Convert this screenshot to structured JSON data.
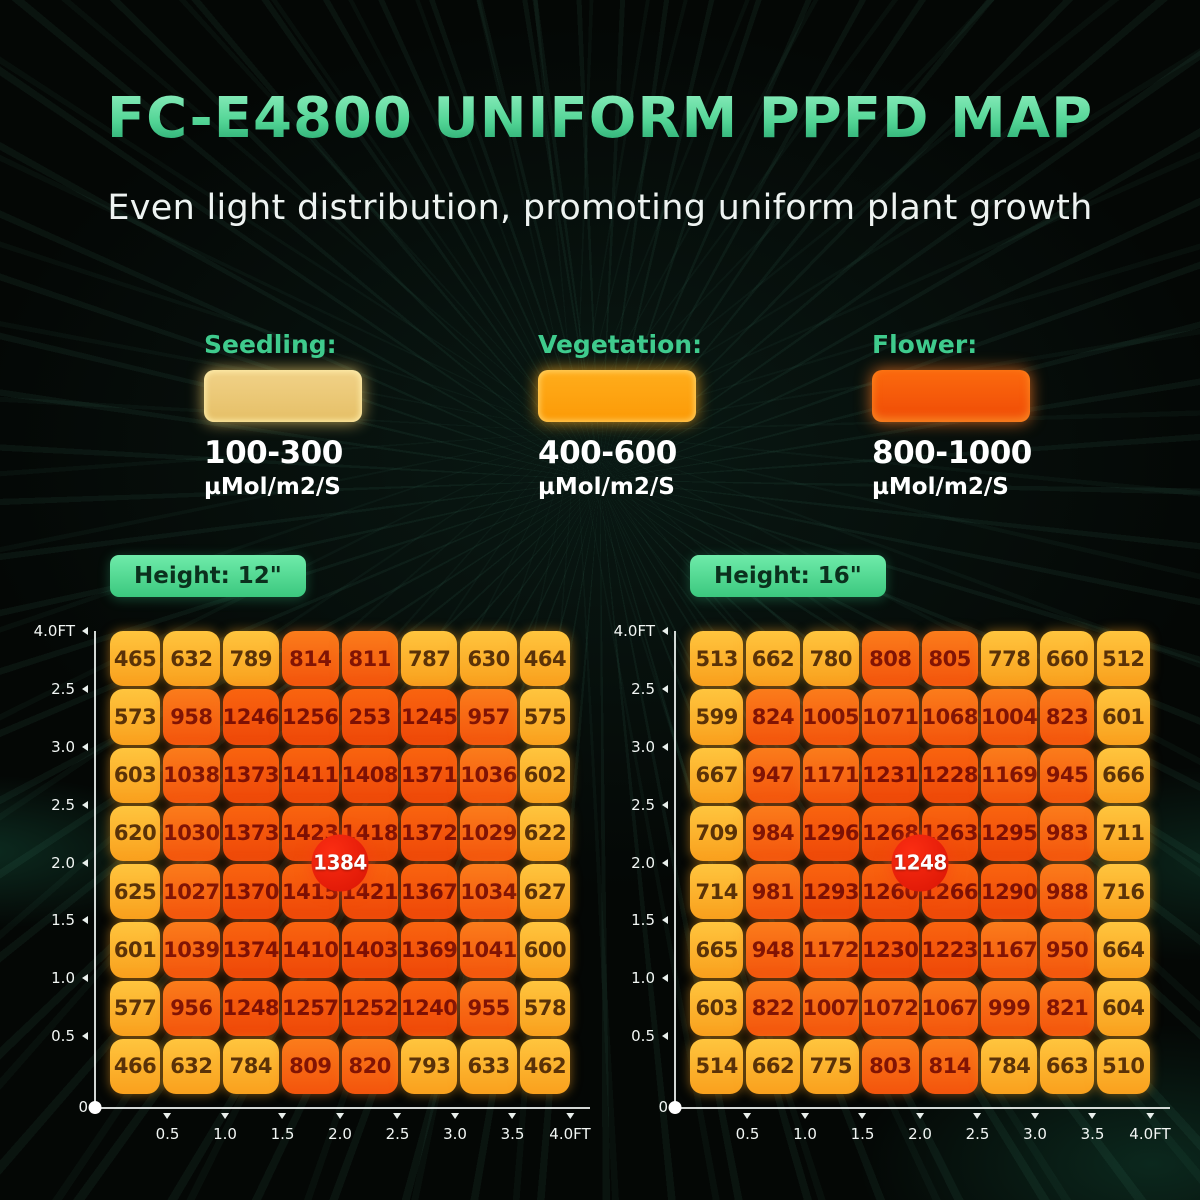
{
  "title": "FC-E4800 UNIFORM PPFD MAP",
  "subtitle": "Even light distribution, promoting uniform plant growth",
  "legend": [
    {
      "label": "Seedling:",
      "range": "100-300",
      "unit": "µMol/m2/S",
      "swatch_color": "#ecc878"
    },
    {
      "label": "Vegetation:",
      "range": "400-600",
      "unit": "µMol/m2/S",
      "swatch_color": "#fda310"
    },
    {
      "label": "Flower:",
      "range": "800-1000",
      "unit": "µMol/m2/S",
      "swatch_color": "#f4550a"
    }
  ],
  "colors": {
    "title_green": "#52d495",
    "legend_label_green": "#3fcb8d",
    "badge_green": "#4fd98d",
    "cell_yellow": "#ffb62b",
    "cell_orange": "#f86912",
    "cell_deep_orange": "#f4530d",
    "center_circle_red": "#e31b0a",
    "axis_white": "#f2f6f4",
    "background": "#040705",
    "tiers": {
      "mid_min": 800,
      "high_min": 1200
    }
  },
  "chart_data": [
    {
      "type": "heatmap",
      "title": "Height: 12\"",
      "center_value": "1384",
      "x_ticks": [
        "0.5",
        "1.0",
        "1.5",
        "2.0",
        "2.5",
        "3.0",
        "3.5",
        "4.0FT"
      ],
      "y_ticks": [
        "4.0FT",
        "2.5",
        "3.0",
        "2.5",
        "2.0",
        "1.5",
        "1.0",
        "0.5",
        "0"
      ],
      "values": [
        [
          465,
          632,
          789,
          814,
          811,
          787,
          630,
          464
        ],
        [
          573,
          958,
          1246,
          1256,
          253,
          1245,
          957,
          575
        ],
        [
          603,
          1038,
          1373,
          1411,
          1408,
          1371,
          1036,
          602
        ],
        [
          620,
          1030,
          1373,
          1423,
          1418,
          1372,
          1029,
          622
        ],
        [
          625,
          1027,
          1370,
          1415,
          1421,
          1367,
          1034,
          627
        ],
        [
          601,
          1039,
          1374,
          1410,
          1403,
          1369,
          1041,
          600
        ],
        [
          577,
          956,
          1248,
          1257,
          1252,
          1240,
          955,
          578
        ],
        [
          466,
          632,
          784,
          809,
          820,
          793,
          633,
          462
        ]
      ],
      "tier_overrides": [
        {
          "row": 1,
          "col": 4,
          "tier": "high"
        }
      ]
    },
    {
      "type": "heatmap",
      "title": "Height: 16\"",
      "center_value": "1248",
      "x_ticks": [
        "0.5",
        "1.0",
        "1.5",
        "2.0",
        "2.5",
        "3.0",
        "3.5",
        "4.0FT"
      ],
      "y_ticks": [
        "4.0FT",
        "2.5",
        "3.0",
        "2.5",
        "2.0",
        "1.5",
        "1.0",
        "0.5",
        "0"
      ],
      "values": [
        [
          513,
          662,
          780,
          808,
          805,
          778,
          660,
          512
        ],
        [
          599,
          824,
          1005,
          1071,
          1068,
          1004,
          823,
          601
        ],
        [
          667,
          947,
          1171,
          1231,
          1228,
          1169,
          945,
          666
        ],
        [
          709,
          984,
          1296,
          1268,
          1263,
          1295,
          983,
          711
        ],
        [
          714,
          981,
          1293,
          1260,
          1266,
          1290,
          988,
          716
        ],
        [
          665,
          948,
          1172,
          1230,
          1223,
          1167,
          950,
          664
        ],
        [
          603,
          822,
          1007,
          1072,
          1067,
          999,
          821,
          604
        ],
        [
          514,
          662,
          775,
          803,
          814,
          784,
          663,
          510
        ]
      ],
      "tier_overrides": []
    }
  ]
}
